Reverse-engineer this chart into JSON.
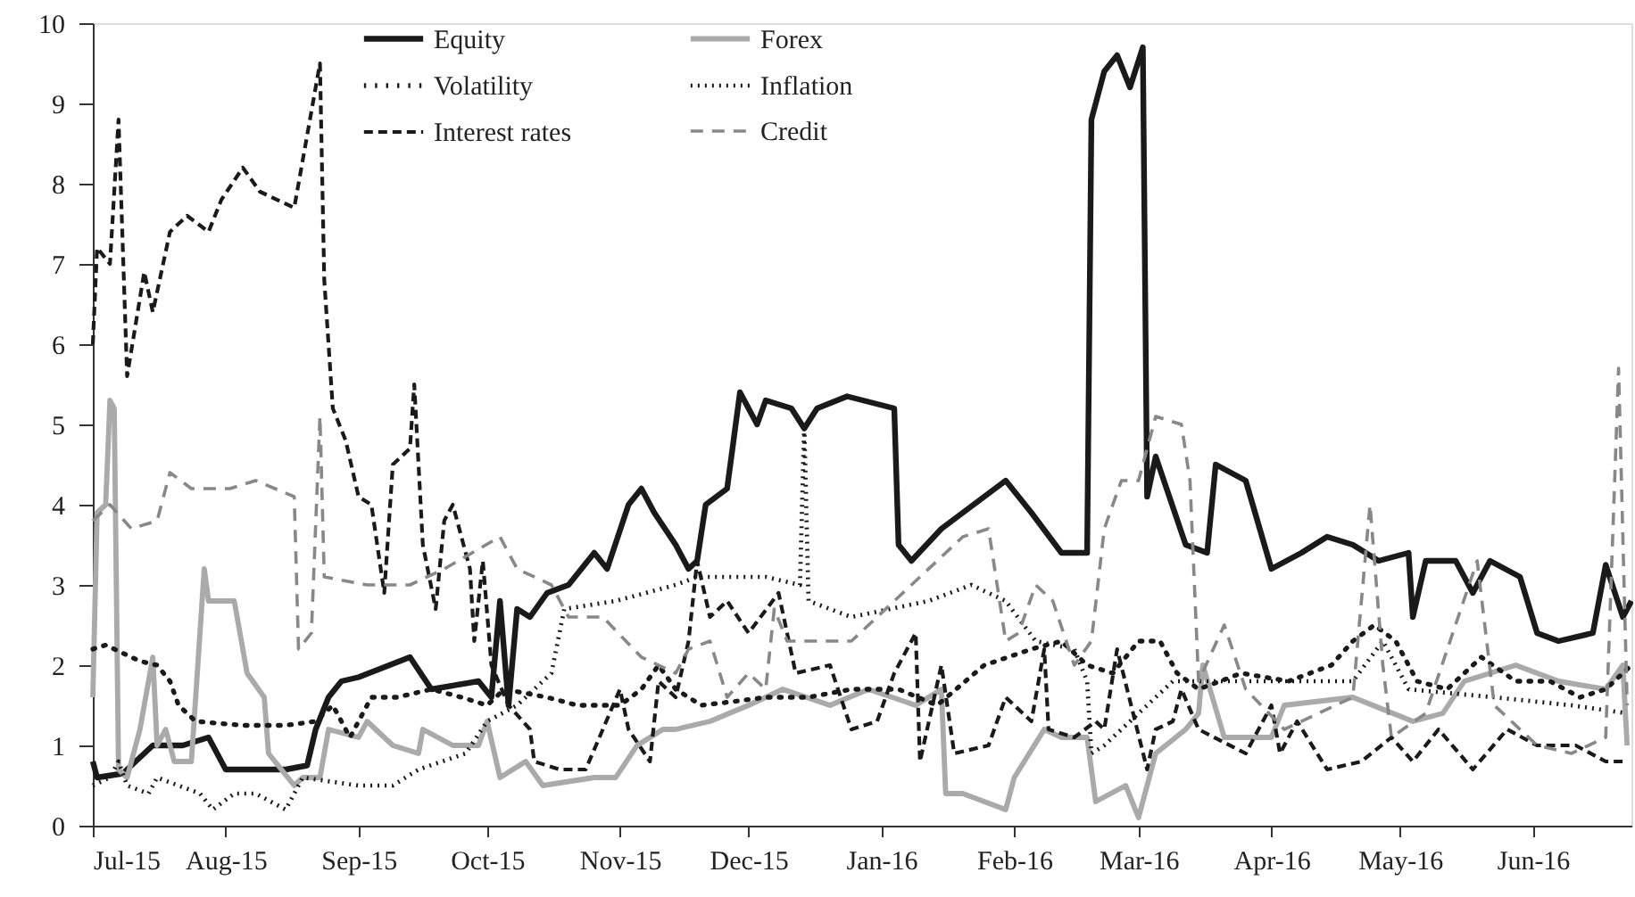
{
  "chart_data": {
    "type": "line",
    "legend": "top",
    "grid": false,
    "marker": "none",
    "xlim": [
      "2015-07-01",
      "2016-06-24"
    ],
    "xticks": [
      {
        "value": "2015-07-01",
        "label": "Jul-15"
      },
      {
        "value": "2015-08-01",
        "label": "Aug-15"
      },
      {
        "value": "2015-09-01",
        "label": "Sep-15"
      },
      {
        "value": "2015-10-01",
        "label": "Oct-15"
      },
      {
        "value": "2015-11-01",
        "label": "Nov-15"
      },
      {
        "value": "2015-12-01",
        "label": "Dec-15"
      },
      {
        "value": "2016-01-01",
        "label": "Jan-16"
      },
      {
        "value": "2016-02-01",
        "label": "Feb-16"
      },
      {
        "value": "2016-03-01",
        "label": "Mar-16"
      },
      {
        "value": "2016-04-01",
        "label": "Apr-16"
      },
      {
        "value": "2016-05-01",
        "label": "May-16"
      },
      {
        "value": "2016-06-01",
        "label": "Jun-16"
      }
    ],
    "ylim": [
      0,
      10
    ],
    "yticks": [
      0,
      1,
      2,
      3,
      4,
      5,
      6,
      7,
      8,
      9,
      10
    ],
    "series": [
      {
        "name": "Equity",
        "color": "#1a1a1a",
        "line_style": "solid",
        "x": [
          "2015-07-01",
          "2015-07-02",
          "2015-07-08",
          "2015-07-15",
          "2015-07-22",
          "2015-07-28",
          "2015-08-01",
          "2015-08-15",
          "2015-08-20",
          "2015-08-22",
          "2015-08-25",
          "2015-08-28",
          "2015-09-01",
          "2015-09-13",
          "2015-09-18",
          "2015-09-29",
          "2015-10-02",
          "2015-10-04",
          "2015-10-06",
          "2015-10-08",
          "2015-10-11",
          "2015-10-15",
          "2015-10-20",
          "2015-10-26",
          "2015-10-29",
          "2015-11-03",
          "2015-11-06",
          "2015-11-09",
          "2015-11-14",
          "2015-11-17",
          "2015-11-19",
          "2015-11-21",
          "2015-11-26",
          "2015-11-29",
          "2015-12-03",
          "2015-12-05",
          "2015-12-11",
          "2015-12-14",
          "2015-12-17",
          "2015-12-24",
          "2016-01-04",
          "2016-01-05",
          "2016-01-08",
          "2016-01-15",
          "2016-01-25",
          "2016-01-30",
          "2016-02-05",
          "2016-02-12",
          "2016-02-18",
          "2016-02-19",
          "2016-02-22",
          "2016-02-25",
          "2016-02-28",
          "2016-03-02",
          "2016-03-03",
          "2016-03-05",
          "2016-03-12",
          "2016-03-17",
          "2016-03-19",
          "2016-03-26",
          "2016-04-01",
          "2016-04-08",
          "2016-04-14",
          "2016-04-20",
          "2016-04-26",
          "2016-05-03",
          "2016-05-04",
          "2016-05-07",
          "2016-05-14",
          "2016-05-18",
          "2016-05-22",
          "2016-05-29",
          "2016-06-02",
          "2016-06-07",
          "2016-06-15",
          "2016-06-18",
          "2016-06-22",
          "2016-06-24"
        ],
        "values": [
          0.8,
          0.6,
          0.65,
          1.0,
          1.0,
          1.1,
          0.7,
          0.7,
          0.75,
          1.2,
          1.6,
          1.8,
          1.85,
          2.1,
          1.7,
          1.8,
          1.6,
          2.8,
          1.5,
          2.7,
          2.6,
          2.9,
          3.0,
          3.4,
          3.2,
          4.0,
          4.2,
          3.9,
          3.5,
          3.2,
          3.3,
          4.0,
          4.2,
          5.4,
          5.0,
          5.3,
          5.2,
          4.95,
          5.2,
          5.35,
          5.2,
          3.5,
          3.3,
          3.7,
          4.1,
          4.3,
          3.9,
          3.4,
          3.4,
          8.8,
          9.4,
          9.6,
          9.2,
          9.7,
          4.1,
          4.6,
          3.5,
          3.4,
          4.5,
          4.3,
          3.2,
          3.4,
          3.6,
          3.5,
          3.3,
          3.4,
          2.6,
          3.3,
          3.3,
          2.9,
          3.3,
          3.1,
          2.4,
          2.3,
          2.4,
          3.25,
          2.6,
          2.8
        ]
      },
      {
        "name": "Forex",
        "color": "#aaaaaa",
        "line_style": "solid",
        "x": [
          "2015-07-01",
          "2015-07-02",
          "2015-07-04",
          "2015-07-05",
          "2015-07-06",
          "2015-07-07",
          "2015-07-09",
          "2015-07-12",
          "2015-07-15",
          "2015-07-16",
          "2015-07-18",
          "2015-07-20",
          "2015-07-24",
          "2015-07-27",
          "2015-07-28",
          "2015-08-03",
          "2015-08-06",
          "2015-08-10",
          "2015-08-11",
          "2015-08-17",
          "2015-08-19",
          "2015-08-23",
          "2015-08-25",
          "2015-09-01",
          "2015-09-03",
          "2015-09-09",
          "2015-09-15",
          "2015-09-16",
          "2015-09-23",
          "2015-09-29",
          "2015-10-01",
          "2015-10-04",
          "2015-10-10",
          "2015-10-14",
          "2015-10-26",
          "2015-10-31",
          "2015-11-05",
          "2015-11-11",
          "2015-11-14",
          "2015-11-22",
          "2015-12-01",
          "2015-12-09",
          "2015-12-20",
          "2015-12-29",
          "2016-01-09",
          "2016-01-15",
          "2016-01-16",
          "2016-01-20",
          "2016-01-30",
          "2016-02-01",
          "2016-02-08",
          "2016-02-12",
          "2016-02-18",
          "2016-02-20",
          "2016-02-27",
          "2016-03-01",
          "2016-03-05",
          "2016-03-12",
          "2016-03-15",
          "2016-03-16",
          "2016-03-21",
          "2016-04-01",
          "2016-04-04",
          "2016-04-20",
          "2016-05-04",
          "2016-05-11",
          "2016-05-16",
          "2016-05-28",
          "2016-06-07",
          "2016-06-18",
          "2016-06-22",
          "2016-06-23"
        ],
        "values": [
          1.6,
          3.9,
          4.0,
          5.3,
          5.2,
          0.7,
          0.6,
          1.2,
          2.1,
          1.0,
          1.2,
          0.8,
          0.8,
          3.2,
          2.8,
          2.8,
          1.9,
          1.6,
          0.9,
          0.5,
          0.6,
          0.6,
          1.2,
          1.1,
          1.3,
          1.0,
          0.9,
          1.2,
          1.0,
          1.0,
          1.3,
          0.6,
          0.8,
          0.5,
          0.6,
          0.6,
          1.0,
          1.2,
          1.2,
          1.3,
          1.5,
          1.7,
          1.5,
          1.7,
          1.5,
          1.7,
          0.4,
          0.4,
          0.2,
          0.6,
          1.2,
          1.1,
          1.1,
          0.3,
          0.5,
          0.1,
          0.9,
          1.2,
          1.4,
          2.0,
          1.1,
          1.1,
          1.5,
          1.6,
          1.3,
          1.4,
          1.8,
          2.0,
          1.8,
          1.7,
          2.0,
          1.0
        ]
      },
      {
        "name": "Volatility",
        "color": "#1a1a1a",
        "line_style": "dotted",
        "x": [
          "2015-07-01",
          "2015-07-04",
          "2015-07-12",
          "2015-07-16",
          "2015-07-19",
          "2015-07-21",
          "2015-07-25",
          "2015-08-05",
          "2015-08-15",
          "2015-08-22",
          "2015-08-26",
          "2015-08-30",
          "2015-09-04",
          "2015-09-10",
          "2015-09-18",
          "2015-09-25",
          "2015-10-01",
          "2015-10-05",
          "2015-10-15",
          "2015-10-22",
          "2015-11-01",
          "2015-11-06",
          "2015-11-10",
          "2015-11-14",
          "2015-11-20",
          "2015-11-28",
          "2015-12-05",
          "2015-12-15",
          "2015-12-25",
          "2016-01-05",
          "2016-01-14",
          "2016-01-25",
          "2016-02-05",
          "2016-02-12",
          "2016-02-18",
          "2016-02-24",
          "2016-03-01",
          "2016-03-06",
          "2016-03-10",
          "2016-03-15",
          "2016-03-25",
          "2016-04-05",
          "2016-04-15",
          "2016-04-20",
          "2016-04-25",
          "2016-04-30",
          "2016-05-05",
          "2016-05-12",
          "2016-05-20",
          "2016-05-28",
          "2016-06-05",
          "2016-06-12",
          "2016-06-18",
          "2016-06-24"
        ],
        "values": [
          2.2,
          2.25,
          2.05,
          2.0,
          1.8,
          1.5,
          1.3,
          1.25,
          1.25,
          1.3,
          1.5,
          1.1,
          1.6,
          1.6,
          1.7,
          1.6,
          1.5,
          1.7,
          1.6,
          1.5,
          1.5,
          1.7,
          2.0,
          1.7,
          1.5,
          1.55,
          1.6,
          1.6,
          1.7,
          1.7,
          1.5,
          2.0,
          2.2,
          2.3,
          2.0,
          1.9,
          2.3,
          2.3,
          1.9,
          1.7,
          1.9,
          1.8,
          2.0,
          2.3,
          2.5,
          2.3,
          1.8,
          1.7,
          2.1,
          1.8,
          1.8,
          1.6,
          1.7,
          2.0
        ]
      },
      {
        "name": "Inflation",
        "color": "#1a1a1a",
        "line_style": "dotted",
        "x": [
          "2015-07-01",
          "2015-07-05",
          "2015-07-07",
          "2015-07-09",
          "2015-07-14",
          "2015-07-16",
          "2015-07-26",
          "2015-07-29",
          "2015-08-03",
          "2015-08-08",
          "2015-08-15",
          "2015-08-19",
          "2015-09-01",
          "2015-09-09",
          "2015-09-15",
          "2015-09-26",
          "2015-10-01",
          "2015-10-08",
          "2015-10-16",
          "2015-10-19",
          "2015-10-31",
          "2015-11-14",
          "2015-11-19",
          "2015-12-05",
          "2015-12-13",
          "2015-12-14",
          "2015-12-15",
          "2015-12-25",
          "2016-01-12",
          "2016-01-22",
          "2016-01-30",
          "2016-02-06",
          "2016-02-15",
          "2016-02-18",
          "2016-02-19",
          "2016-02-22",
          "2016-03-01",
          "2016-03-09",
          "2016-03-26",
          "2016-04-20",
          "2016-04-27",
          "2016-05-03",
          "2016-05-23",
          "2016-06-10",
          "2016-06-23"
        ],
        "values": [
          0.5,
          0.6,
          0.8,
          0.5,
          0.4,
          0.6,
          0.4,
          0.2,
          0.4,
          0.4,
          0.2,
          0.6,
          0.5,
          0.5,
          0.7,
          0.9,
          1.3,
          1.5,
          1.9,
          2.7,
          2.8,
          3.0,
          3.1,
          3.1,
          3.0,
          5.0,
          2.8,
          2.6,
          2.8,
          3.0,
          2.8,
          2.3,
          2.2,
          1.8,
          0.9,
          1.0,
          1.4,
          1.8,
          1.8,
          1.8,
          2.3,
          1.7,
          1.6,
          1.5,
          1.4
        ]
      },
      {
        "name": "Interest rates",
        "color": "#1a1a1a",
        "line_style": "dashed",
        "x": [
          "2015-07-01",
          "2015-07-02",
          "2015-07-05",
          "2015-07-07",
          "2015-07-09",
          "2015-07-13",
          "2015-07-15",
          "2015-07-19",
          "2015-07-23",
          "2015-07-28",
          "2015-07-31",
          "2015-08-05",
          "2015-08-09",
          "2015-08-17",
          "2015-08-19",
          "2015-08-23",
          "2015-08-24",
          "2015-08-26",
          "2015-08-29",
          "2015-09-01",
          "2015-09-04",
          "2015-09-07",
          "2015-09-09",
          "2015-09-13",
          "2015-09-14",
          "2015-09-16",
          "2015-09-19",
          "2015-09-21",
          "2015-09-23",
          "2015-09-27",
          "2015-09-28",
          "2015-09-30",
          "2015-10-02",
          "2015-10-06",
          "2015-10-11",
          "2015-10-12",
          "2015-10-18",
          "2015-10-24",
          "2015-11-01",
          "2015-11-03",
          "2015-11-08",
          "2015-11-10",
          "2015-11-14",
          "2015-11-17",
          "2015-11-19",
          "2015-11-22",
          "2015-11-26",
          "2015-12-01",
          "2015-12-08",
          "2015-12-12",
          "2015-12-20",
          "2015-12-25",
          "2015-12-31",
          "2016-01-04",
          "2016-01-09",
          "2016-01-10",
          "2016-01-15",
          "2016-01-18",
          "2016-01-26",
          "2016-01-30",
          "2016-02-05",
          "2016-02-08",
          "2016-02-09",
          "2016-02-15",
          "2016-02-20",
          "2016-02-22",
          "2016-02-25",
          "2016-03-03",
          "2016-03-05",
          "2016-03-09",
          "2016-03-11",
          "2016-03-15",
          "2016-03-26",
          "2016-04-01",
          "2016-04-03",
          "2016-04-07",
          "2016-04-14",
          "2016-04-22",
          "2016-04-29",
          "2016-05-04",
          "2016-05-10",
          "2016-05-18",
          "2016-05-26",
          "2016-06-02",
          "2016-06-11",
          "2016-06-18",
          "2016-06-23"
        ],
        "values": [
          6.0,
          7.2,
          7.0,
          8.8,
          5.6,
          6.9,
          6.4,
          7.4,
          7.6,
          7.4,
          7.8,
          8.2,
          7.9,
          7.7,
          8.3,
          9.5,
          6.8,
          5.2,
          4.8,
          4.1,
          4.0,
          2.9,
          4.5,
          4.7,
          5.5,
          3.5,
          2.7,
          3.8,
          4.0,
          3.2,
          2.3,
          3.3,
          2.0,
          1.5,
          1.2,
          0.8,
          0.7,
          0.7,
          1.7,
          1.2,
          0.8,
          1.8,
          1.6,
          2.3,
          3.3,
          2.6,
          2.8,
          2.4,
          2.9,
          1.9,
          2.0,
          1.2,
          1.3,
          1.9,
          2.4,
          0.8,
          2.0,
          0.9,
          1.0,
          1.6,
          1.3,
          2.2,
          1.2,
          1.1,
          1.3,
          1.2,
          2.2,
          0.7,
          1.2,
          1.3,
          1.7,
          1.2,
          0.9,
          1.5,
          0.9,
          1.3,
          0.7,
          0.8,
          1.1,
          0.8,
          1.2,
          0.7,
          1.2,
          1.0,
          1.0,
          0.8,
          0.8
        ]
      },
      {
        "name": "Credit",
        "color": "#888888",
        "line_style": "dashed",
        "x": [
          "2015-07-01",
          "2015-07-05",
          "2015-07-10",
          "2015-07-16",
          "2015-07-19",
          "2015-07-24",
          "2015-08-02",
          "2015-08-08",
          "2015-08-17",
          "2015-08-18",
          "2015-08-21",
          "2015-08-23",
          "2015-08-24",
          "2015-09-03",
          "2015-09-13",
          "2015-09-21",
          "2015-10-04",
          "2015-10-08",
          "2015-10-16",
          "2015-10-20",
          "2015-10-28",
          "2015-11-06",
          "2015-11-14",
          "2015-11-17",
          "2015-11-22",
          "2015-11-26",
          "2015-12-01",
          "2015-12-05",
          "2015-12-07",
          "2015-12-10",
          "2015-12-25",
          "2016-01-04",
          "2016-01-08",
          "2016-01-16",
          "2016-01-20",
          "2016-01-26",
          "2016-01-30",
          "2016-02-02",
          "2016-02-06",
          "2016-02-10",
          "2016-02-15",
          "2016-02-19",
          "2016-02-22",
          "2016-02-26",
          "2016-03-01",
          "2016-03-05",
          "2016-03-11",
          "2016-03-13",
          "2016-03-15",
          "2016-03-21",
          "2016-03-26",
          "2016-04-04",
          "2016-04-20",
          "2016-04-24",
          "2016-04-27",
          "2016-04-29",
          "2016-05-07",
          "2016-05-19",
          "2016-05-23",
          "2016-06-02",
          "2016-06-10",
          "2016-06-18",
          "2016-06-21",
          "2016-06-23"
        ],
        "values": [
          3.8,
          4.0,
          3.7,
          3.8,
          4.4,
          4.2,
          4.2,
          4.3,
          4.1,
          2.2,
          2.4,
          5.1,
          3.1,
          3.0,
          3.0,
          3.2,
          3.6,
          3.2,
          3.0,
          2.6,
          2.6,
          2.1,
          1.9,
          2.2,
          2.3,
          1.6,
          1.9,
          1.7,
          2.7,
          2.3,
          2.3,
          2.8,
          3.0,
          3.4,
          3.6,
          3.7,
          2.3,
          2.4,
          3.0,
          2.8,
          2.0,
          2.3,
          3.7,
          4.3,
          4.3,
          5.1,
          5.0,
          4.3,
          1.8,
          2.5,
          1.7,
          1.2,
          1.6,
          4.0,
          2.0,
          1.1,
          1.4,
          3.3,
          1.5,
          1.0,
          0.9,
          1.1,
          5.7,
          1.5
        ]
      }
    ]
  }
}
